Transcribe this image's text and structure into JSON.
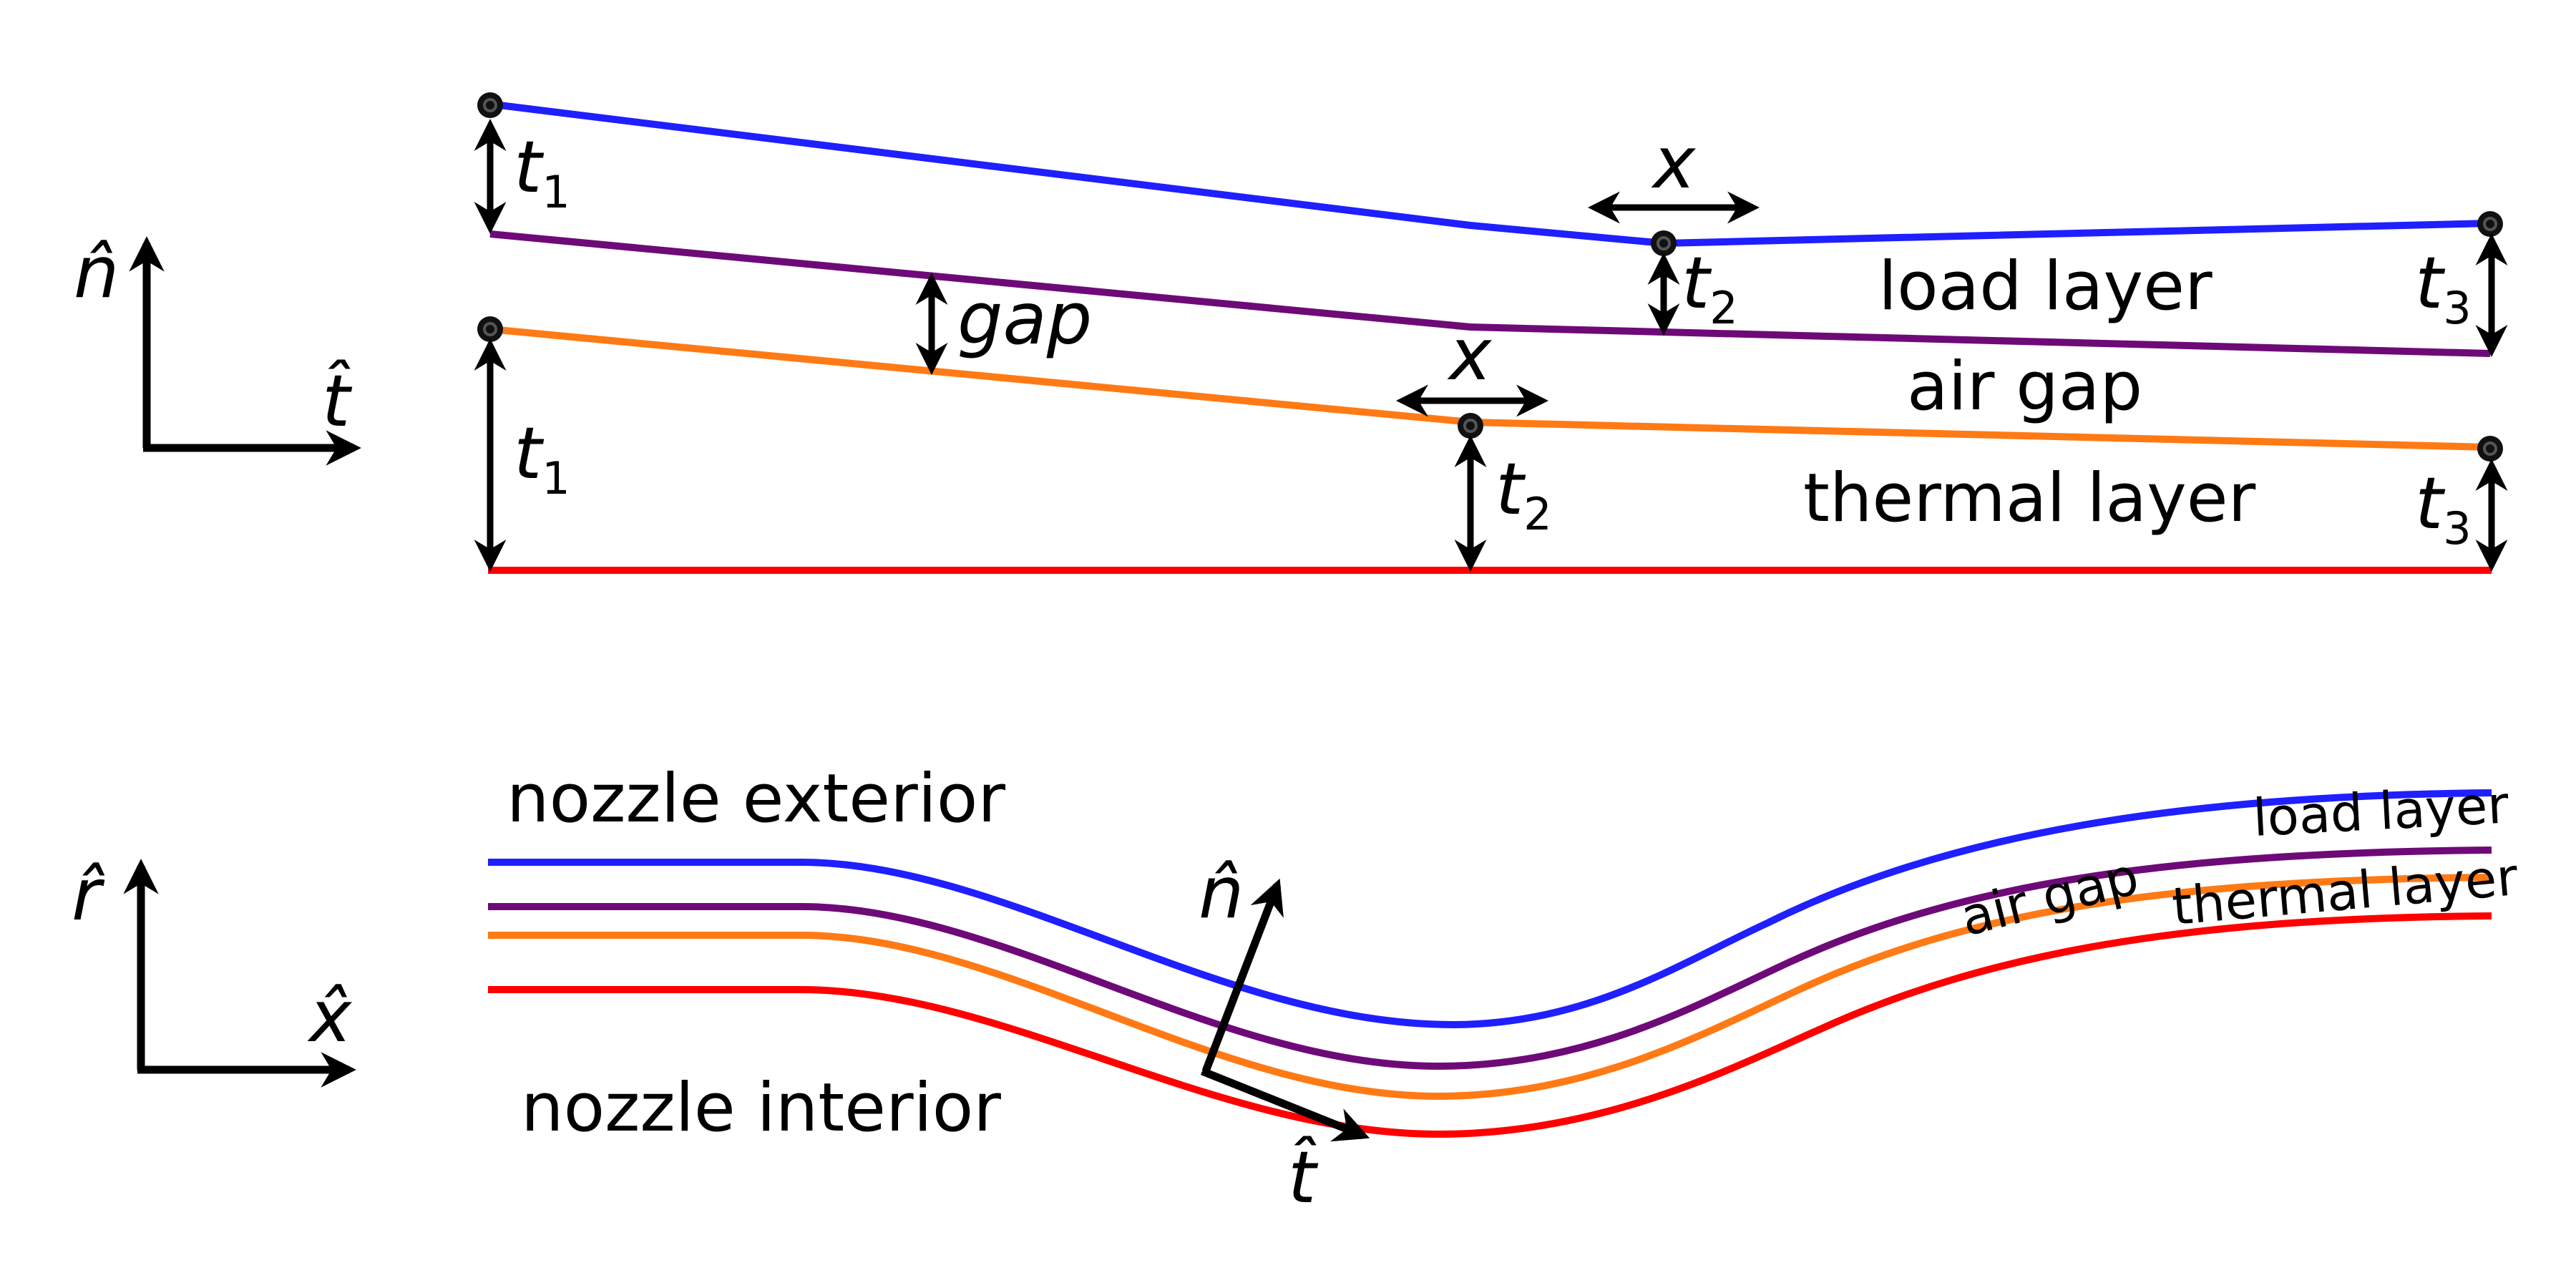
{
  "colors": {
    "load_outer": "#1f1fff",
    "load_inner": "#6e0a78",
    "thermal_outer": "#ff7a14",
    "thermal_inner": "#ff0000",
    "arrows": "#000000"
  },
  "top_panel": {
    "axis_n_hat": "n̂",
    "axis_t_hat": "t̂",
    "thickness_labels": {
      "t1_main": "t",
      "t1_sub": "1",
      "t2_main": "t",
      "t2_sub": "2",
      "t3_main": "t",
      "t3_sub": "3"
    },
    "x_label": "x",
    "gap_label": "gap",
    "layer_labels": {
      "load_layer": "load layer",
      "air_gap": "air gap",
      "thermal_layer": "thermal layer"
    }
  },
  "bottom_panel": {
    "axis_r_hat": "r̂",
    "axis_x_hat": "x̂",
    "local_n_hat": "n̂",
    "local_t_hat": "t̂",
    "nozzle_exterior": "nozzle exterior",
    "nozzle_interior": "nozzle interior",
    "load_layer": "load layer",
    "air_gap": "air gap",
    "thermal_layer": "thermal layer"
  }
}
